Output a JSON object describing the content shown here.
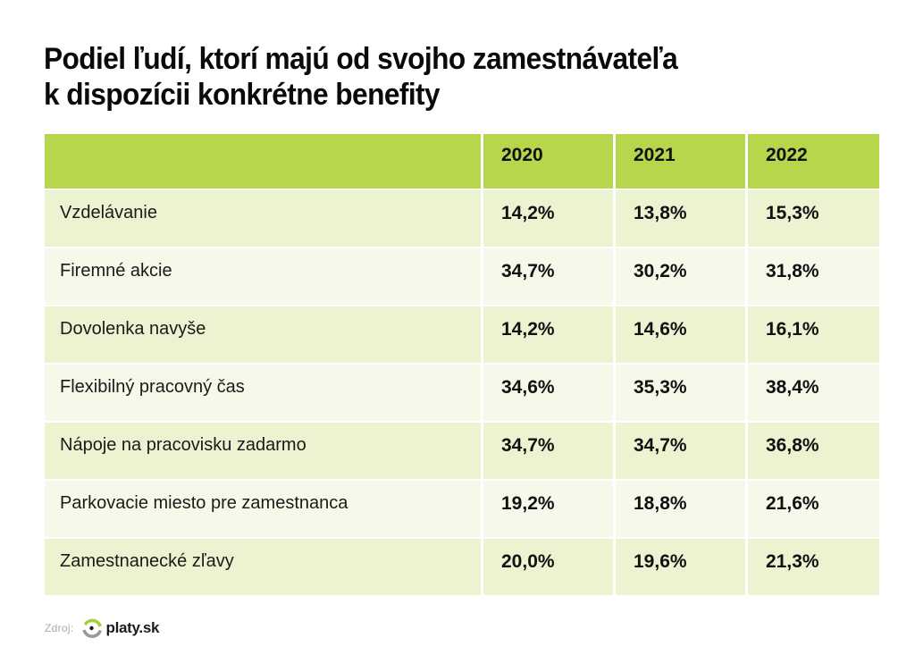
{
  "title_lines": [
    "Podiel ľudí, ktorí majú od svojho zamestnávateľa",
    "k dispozícii konkrétne benefity"
  ],
  "colors": {
    "header_bg": "#b8d64b",
    "row_odd_bg": "#ebf3d1",
    "row_even_bg": "#f6f9ea",
    "logo_green": "#a6cf3a",
    "logo_gray": "#9a9a9a"
  },
  "chart_data": {
    "type": "table",
    "title": "Podiel ľudí, ktorí majú od svojho zamestnávateľa k dispozícii konkrétne benefity",
    "columns": [
      "",
      "2020",
      "2021",
      "2022"
    ],
    "rows": [
      {
        "label": "Vzdelávanie",
        "values": [
          "14,2%",
          "13,8%",
          "15,3%"
        ]
      },
      {
        "label": "Firemné akcie",
        "values": [
          "34,7%",
          "30,2%",
          "31,8%"
        ]
      },
      {
        "label": "Dovolenka navyše",
        "values": [
          "14,2%",
          "14,6%",
          "16,1%"
        ]
      },
      {
        "label": "Flexibilný pracovný čas",
        "values": [
          "34,6%",
          "35,3%",
          "38,4%"
        ]
      },
      {
        "label": "Nápoje na pracovisku zadarmo",
        "values": [
          "34,7%",
          "34,7%",
          "36,8%"
        ]
      },
      {
        "label": "Parkovacie miesto pre zamestnanca",
        "values": [
          "19,2%",
          "18,8%",
          "21,6%"
        ]
      },
      {
        "label": "Zamestnanecké zľavy",
        "values": [
          "20,0%",
          "19,6%",
          "21,3%"
        ]
      }
    ],
    "numeric_values": {
      "categories": [
        "Vzdelávanie",
        "Firemné akcie",
        "Dovolenka navyše",
        "Flexibilný pracovný čas",
        "Nápoje na pracovisku zadarmo",
        "Parkovacie miesto pre zamestnanca",
        "Zamestnanecké zľavy"
      ],
      "series": [
        {
          "name": "2020",
          "values": [
            14.2,
            34.7,
            14.2,
            34.6,
            34.7,
            19.2,
            20.0
          ]
        },
        {
          "name": "2021",
          "values": [
            13.8,
            30.2,
            14.6,
            35.3,
            34.7,
            18.8,
            19.6
          ]
        },
        {
          "name": "2022",
          "values": [
            15.3,
            31.8,
            16.1,
            38.4,
            36.8,
            21.6,
            21.3
          ]
        }
      ],
      "unit": "%"
    }
  },
  "footer": {
    "source_label": "Zdroj:",
    "logo_text": "platy.sk",
    "logo_icon": "platy-logo-icon"
  }
}
